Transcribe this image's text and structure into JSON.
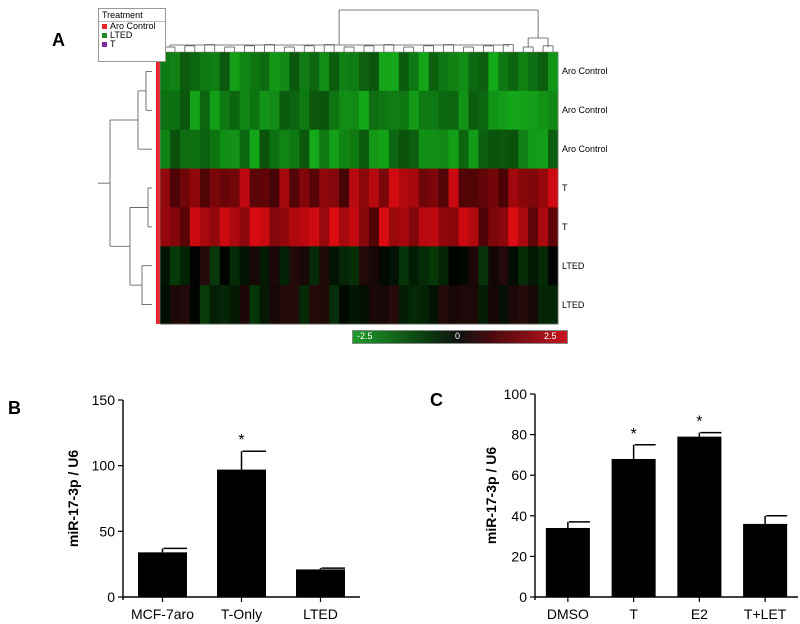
{
  "panels": {
    "a": "A",
    "b": "B",
    "c": "C"
  },
  "heatmap": {
    "legend": {
      "title": "Treatment",
      "items": [
        {
          "label": "Aro Control",
          "color": "#e8262b"
        },
        {
          "label": "LTED",
          "color": "#1a8a2a"
        },
        {
          "label": "T",
          "color": "#7b2c9c"
        }
      ]
    },
    "row_labels": [
      "Aro Control",
      "Aro Control",
      "Aro Control",
      "T",
      "T",
      "LTED",
      "LTED"
    ],
    "scale": {
      "min": "-2.5",
      "mid": "0",
      "max": "2.5",
      "low_color": "#1e9c2a",
      "mid_color": "#111111",
      "high_color": "#c8141e"
    }
  },
  "chart_data": [
    {
      "type": "bar",
      "ylabel": "miR-17-3p / U6",
      "categories": [
        "MCF-7aro",
        "T-Only",
        "LTED"
      ],
      "values": [
        34,
        97,
        21
      ],
      "errors": [
        3,
        14,
        1
      ],
      "significance": [
        "",
        "*",
        ""
      ],
      "ylim": [
        0,
        150
      ],
      "yticks": [
        0,
        50,
        100,
        150
      ]
    },
    {
      "type": "bar",
      "ylabel": "miR-17-3p / U6",
      "categories": [
        "DMSO",
        "T",
        "E2",
        "T+LET"
      ],
      "values": [
        34,
        68,
        79,
        36
      ],
      "errors": [
        3,
        7,
        2,
        4
      ],
      "significance": [
        "",
        "*",
        "*",
        ""
      ],
      "ylim": [
        0,
        100
      ],
      "yticks": [
        0,
        20,
        40,
        60,
        80,
        100
      ]
    }
  ]
}
